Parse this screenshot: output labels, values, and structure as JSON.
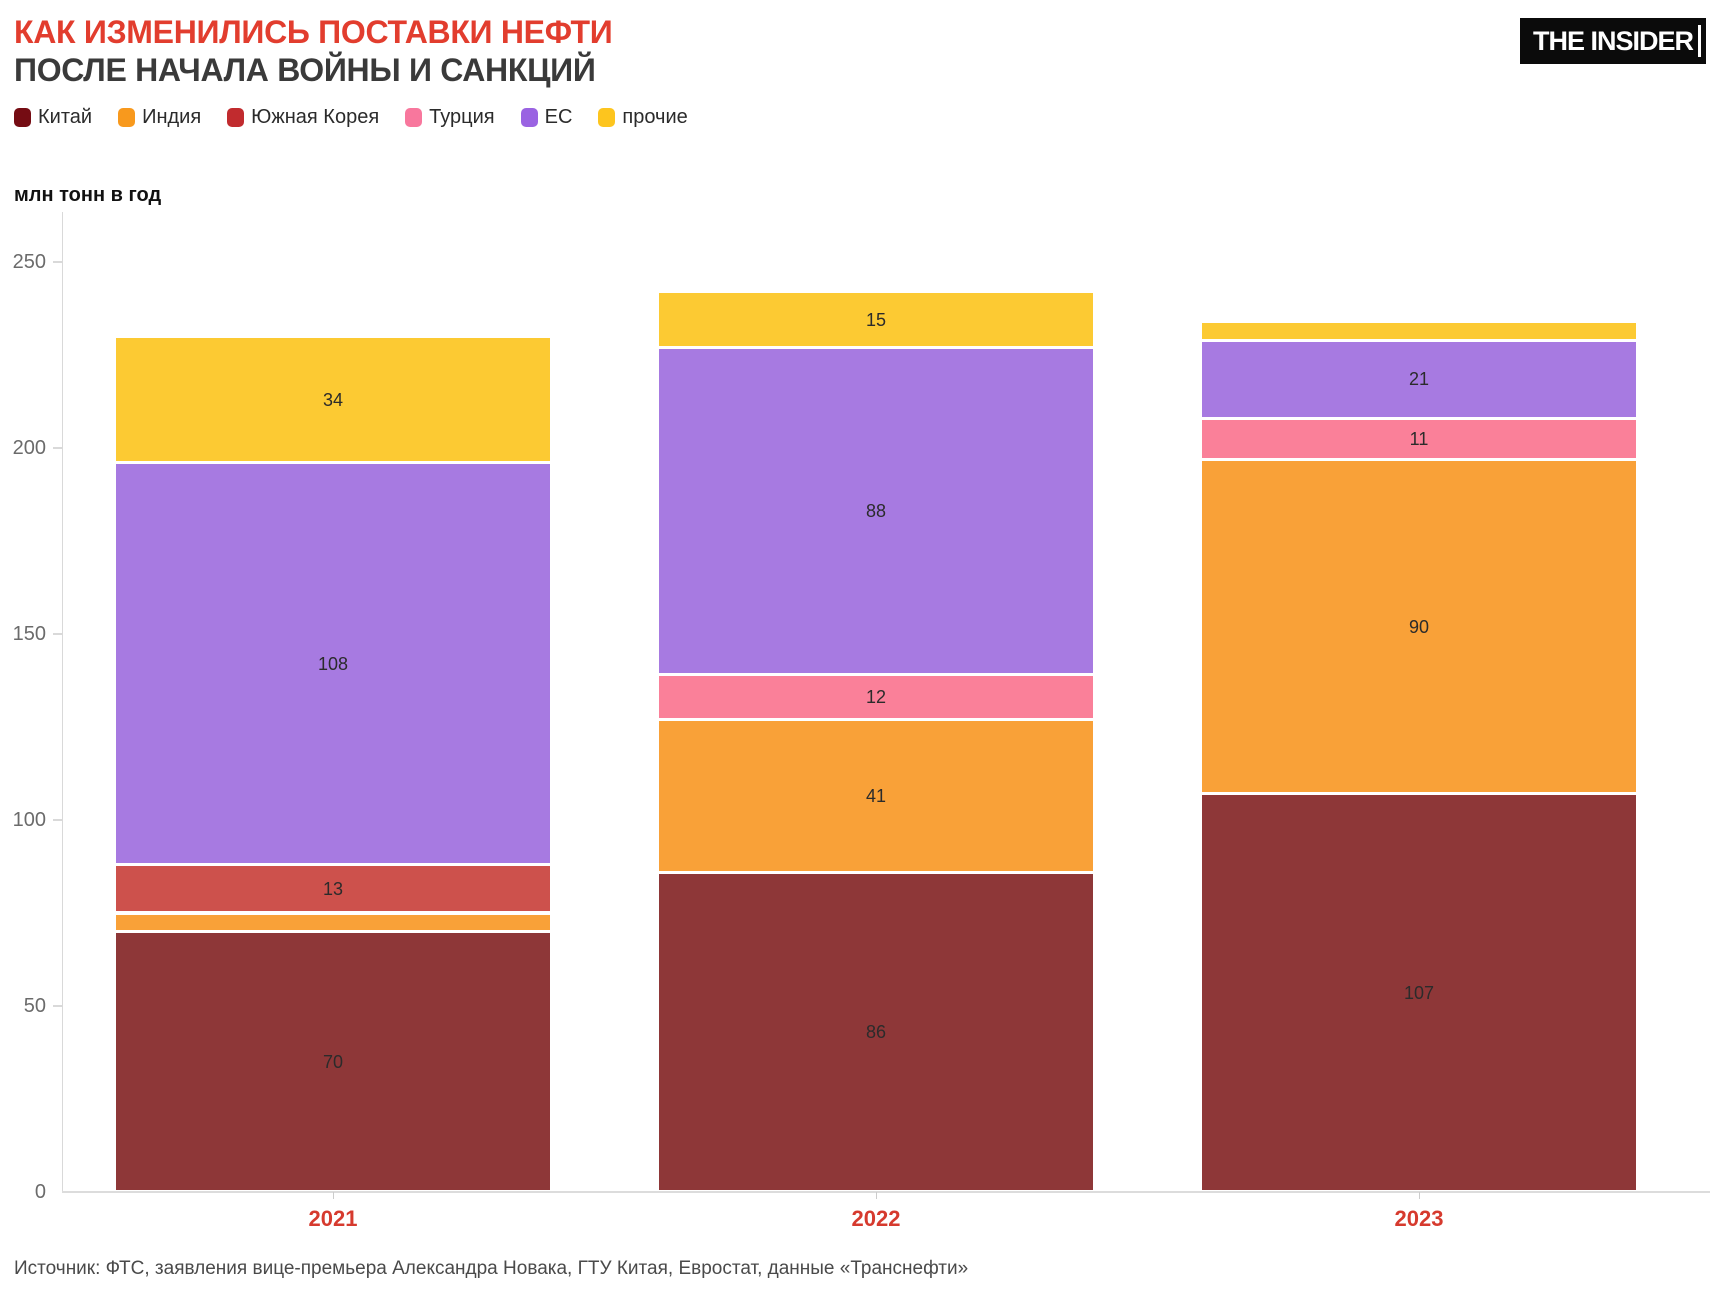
{
  "header": {
    "title_line1": "КАК ИЗМЕНИЛИСЬ ПОСТАВКИ НЕФТИ",
    "title_line2": "ПОСЛЕ НАЧАЛА ВОЙНЫ И САНКЦИЙ",
    "title_accent_color": "#e23d2e",
    "title_color": "#3a3a3a",
    "logo_text": "THE INSIDER"
  },
  "footer": {
    "source": "Источник: ФТС, заявления вице-премьера Александра Новака, ГТУ Китая, Евростат, данные «Транснефти»"
  },
  "chart_data": {
    "type": "bar",
    "stacked": true,
    "title": "КАК ИЗМЕНИЛИСЬ ПОСТАВКИ НЕФТИ ПОСЛЕ НАЧАЛА ВОЙНЫ И САНКЦИЙ",
    "unit_label": "млн тонн в год",
    "categories": [
      "2021",
      "2022",
      "2023"
    ],
    "category_label_color": "#d63a2e",
    "series": [
      {
        "name": "Китай",
        "color": "#8e3738",
        "legend_color": "#750c13",
        "values": [
          70,
          86,
          107
        ]
      },
      {
        "name": "Индия",
        "color": "#f9a138",
        "legend_color": "#f8991d",
        "values": [
          5,
          41,
          90
        ]
      },
      {
        "name": "Южная Корея",
        "color": "#cd514c",
        "legend_color": "#c12b2e",
        "values": [
          13,
          0,
          0
        ]
      },
      {
        "name": "Турция",
        "color": "#fa8099",
        "legend_color": "#f8779d",
        "values": [
          0,
          12,
          11
        ]
      },
      {
        "name": "ЕС",
        "color": "#a77ae1",
        "legend_color": "#9a63e2",
        "values": [
          108,
          88,
          21
        ]
      },
      {
        "name": "прочие",
        "color": "#fcca33",
        "legend_color": "#fdc51e",
        "values": [
          34,
          15,
          5
        ]
      }
    ],
    "ylim": [
      0,
      250
    ],
    "yticks": [
      0,
      50,
      100,
      150,
      200,
      250
    ],
    "value_label_min": 10,
    "legend_position": "top-left",
    "grid": "off"
  }
}
